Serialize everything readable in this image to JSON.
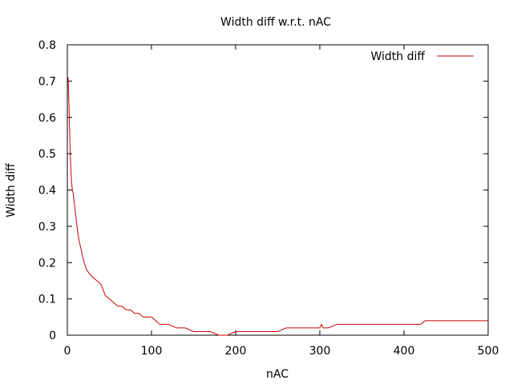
{
  "chart_data": {
    "type": "line",
    "title": "Width diff w.r.t. nAC",
    "xlabel": "nAC",
    "ylabel": "Width diff",
    "xlim": [
      0,
      500
    ],
    "ylim": [
      0,
      0.8
    ],
    "x_ticks": [
      0,
      100,
      200,
      300,
      400,
      500
    ],
    "y_ticks": [
      0,
      0.1,
      0.2,
      0.3,
      0.4,
      0.5,
      0.6,
      0.7,
      0.8
    ],
    "grid": false,
    "legend_position": "top-right",
    "series": [
      {
        "name": "Width diff",
        "color": "#cc0000",
        "x": [
          1,
          2,
          3,
          4,
          5,
          6,
          7,
          8,
          9,
          10,
          12,
          14,
          16,
          18,
          20,
          23,
          26,
          30,
          35,
          40,
          45,
          50,
          55,
          60,
          65,
          70,
          75,
          80,
          85,
          90,
          95,
          100,
          105,
          110,
          120,
          130,
          140,
          150,
          160,
          170,
          180,
          190,
          200,
          210,
          220,
          230,
          240,
          250,
          260,
          270,
          280,
          290,
          300,
          302,
          304,
          310,
          320,
          330,
          340,
          350,
          360,
          370,
          380,
          390,
          400,
          410,
          420,
          425,
          430,
          440,
          450,
          460,
          470,
          480,
          490,
          500
        ],
        "y": [
          0.71,
          0.63,
          0.53,
          0.47,
          0.42,
          0.4,
          0.39,
          0.37,
          0.35,
          0.33,
          0.29,
          0.26,
          0.24,
          0.22,
          0.2,
          0.18,
          0.17,
          0.16,
          0.15,
          0.14,
          0.11,
          0.1,
          0.09,
          0.08,
          0.08,
          0.07,
          0.07,
          0.06,
          0.06,
          0.05,
          0.05,
          0.05,
          0.04,
          0.03,
          0.03,
          0.02,
          0.02,
          0.01,
          0.01,
          0.01,
          0.0,
          0.0,
          0.01,
          0.01,
          0.01,
          0.01,
          0.01,
          0.01,
          0.02,
          0.02,
          0.02,
          0.02,
          0.02,
          0.03,
          0.02,
          0.02,
          0.03,
          0.03,
          0.03,
          0.03,
          0.03,
          0.03,
          0.03,
          0.03,
          0.03,
          0.03,
          0.03,
          0.04,
          0.04,
          0.04,
          0.04,
          0.04,
          0.04,
          0.04,
          0.04,
          0.04
        ]
      }
    ]
  }
}
